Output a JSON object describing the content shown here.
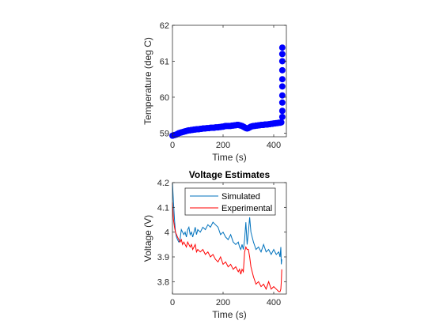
{
  "chart_data": [
    {
      "type": "scatter",
      "title": "",
      "xlabel": "Time (s)",
      "ylabel": "Temperature (deg C)",
      "xlim": [
        0,
        450
      ],
      "ylim": [
        58.9,
        62
      ],
      "xticks": [
        0,
        200,
        400
      ],
      "yticks": [
        59,
        60,
        61,
        62
      ],
      "grid": false,
      "marker_color": "#0000ff",
      "series": [
        {
          "x": [
            0,
            5,
            10,
            15,
            20,
            25,
            30,
            35,
            40,
            45,
            50,
            55,
            60,
            65,
            70,
            75,
            80,
            85,
            90,
            95,
            100,
            105,
            110,
            115,
            120,
            125,
            130,
            135,
            140,
            145,
            150,
            155,
            160,
            165,
            170,
            175,
            180,
            185,
            190,
            195,
            200,
            205,
            210,
            215,
            220,
            225,
            230,
            235,
            240,
            245,
            250,
            255,
            260,
            265,
            270,
            275,
            280,
            285,
            290,
            295,
            300,
            305,
            310,
            315,
            320,
            325,
            330,
            335,
            340,
            345,
            350,
            355,
            360,
            365,
            370,
            375,
            380,
            385,
            390,
            395,
            400,
            405,
            410,
            415,
            420,
            425,
            430,
            434,
            434,
            434,
            434,
            434,
            434,
            434,
            434,
            434,
            434
          ],
          "y": [
            58.93,
            58.94,
            58.95,
            58.96,
            58.98,
            59.0,
            59.01,
            59.02,
            59.03,
            59.04,
            59.05,
            59.06,
            59.07,
            59.08,
            59.08,
            59.09,
            59.09,
            59.1,
            59.1,
            59.11,
            59.11,
            59.11,
            59.12,
            59.12,
            59.13,
            59.13,
            59.13,
            59.14,
            59.14,
            59.14,
            59.15,
            59.15,
            59.15,
            59.15,
            59.16,
            59.16,
            59.16,
            59.17,
            59.17,
            59.18,
            59.18,
            59.19,
            59.2,
            59.2,
            59.2,
            59.2,
            59.2,
            59.21,
            59.21,
            59.22,
            59.22,
            59.23,
            59.23,
            59.22,
            59.21,
            59.2,
            59.18,
            59.16,
            59.14,
            59.13,
            59.14,
            59.16,
            59.18,
            59.19,
            59.2,
            59.2,
            59.21,
            59.21,
            59.22,
            59.22,
            59.23,
            59.23,
            59.23,
            59.24,
            59.24,
            59.24,
            59.25,
            59.25,
            59.26,
            59.26,
            59.27,
            59.27,
            59.28,
            59.28,
            59.29,
            59.29,
            59.3,
            59.45,
            59.62,
            59.85,
            60.05,
            60.3,
            60.5,
            60.75,
            61.0,
            61.2,
            61.38
          ]
        }
      ]
    },
    {
      "type": "line",
      "title": "Voltage Estimates",
      "xlabel": "Time (s)",
      "ylabel": "Voltage (V)",
      "xlim": [
        0,
        450
      ],
      "ylim": [
        3.75,
        4.2
      ],
      "xticks": [
        0,
        200,
        400
      ],
      "yticks": [
        3.8,
        3.9,
        4,
        4.1,
        4.2
      ],
      "grid": false,
      "legend_position": "top-right",
      "series": [
        {
          "name": "Simulated",
          "color": "#0072bd",
          "x": [
            0,
            4,
            8,
            12,
            16,
            20,
            25,
            30,
            35,
            40,
            45,
            50,
            55,
            60,
            65,
            70,
            75,
            80,
            85,
            90,
            95,
            100,
            110,
            120,
            130,
            140,
            150,
            160,
            170,
            180,
            190,
            200,
            210,
            220,
            230,
            240,
            250,
            260,
            265,
            270,
            275,
            280,
            285,
            290,
            295,
            300,
            305,
            310,
            320,
            330,
            340,
            350,
            360,
            370,
            380,
            390,
            400,
            410,
            420,
            425,
            428,
            430,
            432
          ],
          "y": [
            4.2,
            4.12,
            4.05,
            4.0,
            3.98,
            3.97,
            3.96,
            3.97,
            4.01,
            4.0,
            3.99,
            4.0,
            3.98,
            4.01,
            4.02,
            3.99,
            4.0,
            3.98,
            4.0,
            4.02,
            3.99,
            4.01,
            4.0,
            4.02,
            4.01,
            4.03,
            4.02,
            4.04,
            4.03,
            4.02,
            3.99,
            4.0,
            3.98,
            3.97,
            3.99,
            3.96,
            3.95,
            3.96,
            3.94,
            3.93,
            3.95,
            3.93,
            3.97,
            4.04,
            3.95,
            4.0,
            4.06,
            4.0,
            3.96,
            3.93,
            3.94,
            3.92,
            3.95,
            3.92,
            3.93,
            3.91,
            3.93,
            3.91,
            3.92,
            3.9,
            3.94,
            3.87,
            3.89
          ]
        },
        {
          "name": "Experimental",
          "color": "#ff0000",
          "x": [
            0,
            4,
            8,
            12,
            16,
            20,
            25,
            30,
            35,
            40,
            45,
            50,
            55,
            60,
            65,
            70,
            75,
            80,
            85,
            90,
            95,
            100,
            110,
            120,
            130,
            140,
            150,
            160,
            170,
            180,
            190,
            200,
            210,
            220,
            230,
            240,
            250,
            260,
            265,
            270,
            275,
            280,
            285,
            290,
            295,
            300,
            305,
            310,
            320,
            330,
            340,
            350,
            360,
            370,
            380,
            390,
            400,
            410,
            420,
            425,
            428,
            430,
            432
          ],
          "y": [
            4.12,
            4.05,
            4.02,
            4.0,
            3.99,
            3.98,
            3.97,
            3.96,
            3.97,
            3.95,
            3.96,
            3.95,
            3.94,
            3.96,
            3.95,
            3.94,
            3.95,
            3.93,
            3.94,
            3.95,
            3.92,
            3.93,
            3.92,
            3.93,
            3.91,
            3.92,
            3.9,
            3.91,
            3.89,
            3.88,
            3.9,
            3.87,
            3.88,
            3.86,
            3.87,
            3.85,
            3.86,
            3.84,
            3.85,
            3.83,
            3.85,
            3.84,
            3.92,
            3.94,
            3.93,
            3.93,
            3.9,
            3.86,
            3.82,
            3.79,
            3.8,
            3.78,
            3.79,
            3.77,
            3.8,
            3.77,
            3.78,
            3.77,
            3.76,
            3.76,
            3.77,
            3.8,
            3.85
          ]
        }
      ]
    }
  ]
}
